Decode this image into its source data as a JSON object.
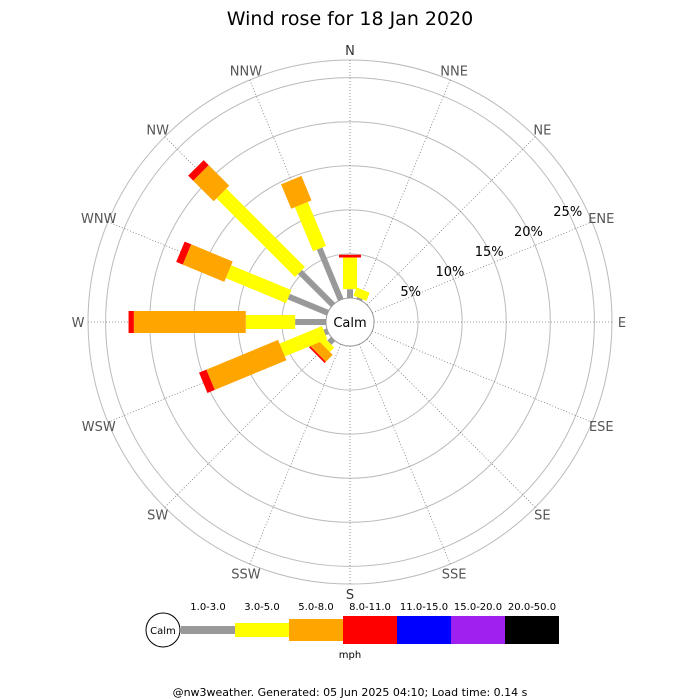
{
  "chart_data": {
    "type": "windrose",
    "title": "Wind rose for 18 Jan 2020",
    "directions": [
      "N",
      "NNE",
      "NE",
      "ENE",
      "E",
      "ESE",
      "SE",
      "SSE",
      "S",
      "SSW",
      "SW",
      "WSW",
      "W",
      "WNW",
      "NW",
      "NNW"
    ],
    "ring_values": [
      5,
      10,
      15,
      20,
      25
    ],
    "ring_labels": [
      "5%",
      "10%",
      "15%",
      "20%",
      "25%"
    ],
    "r_max": 27,
    "calm_label": "Calm",
    "bins": [
      "1.0-3.0",
      "3.0-5.0",
      "5.0-8.0",
      "8.0-11.0",
      "11.0-15.0",
      "15.0-20.0",
      "20.0-50.0"
    ],
    "bin_colors": [
      "#999999",
      "#ffff00",
      "#ffa500",
      "#ff0000",
      "#0000ff",
      "#a020f0",
      "#000000"
    ],
    "unit": "mph",
    "cumulative": {
      "N": [
        1.0,
        4.6,
        4.6,
        4.9
      ],
      "NNE": [
        0.2,
        1.2,
        1.2,
        1.2
      ],
      "NNW": [
        6.3,
        11.7,
        14.7,
        14.7
      ],
      "NW": [
        5.3,
        17.9,
        21.2,
        22.0
      ],
      "WNW": [
        4.8,
        12.2,
        17.3,
        18.1
      ],
      "W": [
        3.5,
        9.1,
        21.8,
        22.4
      ],
      "WSW": [
        0.4,
        5.6,
        14.4,
        15.3
      ],
      "SW": [
        0.6,
        1.3,
        2.4,
        2.6
      ],
      "E": [
        0,
        0,
        0,
        0
      ],
      "ENE": [
        0,
        0,
        0,
        0
      ],
      "NE": [
        0,
        0,
        0,
        0
      ],
      "ESE": [
        0,
        0,
        0,
        0
      ],
      "SE": [
        0,
        0,
        0,
        0
      ],
      "SSE": [
        0,
        0,
        0,
        0
      ],
      "S": [
        0,
        0,
        0,
        0
      ],
      "SSW": [
        0,
        0,
        0,
        0
      ]
    }
  },
  "footer": "@nw3weather. Generated: 05 Jun 2025 04:10; Load time: 0.14 s"
}
